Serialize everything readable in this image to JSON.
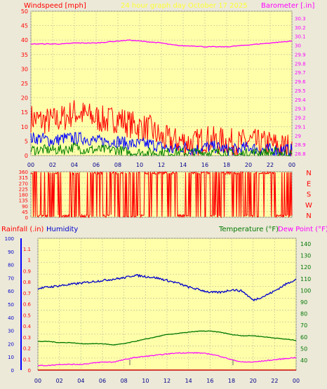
{
  "header": {
    "windspeed_label": "Windspeed [mph]",
    "title": "24 hour graph day   October 17 2025",
    "barometer_label": "Barometer [.in]"
  },
  "lower_header": {
    "rainfall_label": "Rainfall (.in)",
    "humidity_label": "Humidity",
    "temperature_label": "Temperature (°F)",
    "dewpoint_label": "Dew Point (°F)"
  },
  "colors": {
    "plot_bg": "#ffffaa",
    "frame_bg": "#ece9d8",
    "windspeed": "#ff0000",
    "gust_blue": "#0000ff",
    "avg_green": "#007f00",
    "barometer": "#ff00ff",
    "humidity": "#0000cc",
    "temperature": "#007700",
    "dewpoint": "#ff00ff",
    "rain": "#cc0000"
  },
  "chart_data": [
    {
      "type": "line",
      "name": "wind-barometer",
      "x_ticks": [
        "00",
        "02",
        "04",
        "06",
        "08",
        "10",
        "12",
        "14",
        "16",
        "18",
        "20",
        "22",
        "00"
      ],
      "x": [
        0,
        1,
        2,
        3,
        4,
        5,
        6,
        7,
        8,
        9,
        10,
        11,
        12,
        13,
        14,
        15,
        16,
        17,
        18,
        19,
        20,
        21,
        22,
        23,
        24
      ],
      "left_axis": {
        "label": "Windspeed [mph]",
        "ticks": [
          0,
          5,
          10,
          15,
          20,
          25,
          30,
          35,
          40,
          45,
          50
        ],
        "ylim": [
          0,
          50
        ]
      },
      "right_axis": {
        "label": "Barometer [.in]",
        "ticks": [
          "28.8",
          "28.9",
          "29",
          "29.1",
          "29.2",
          "29.3",
          "29.4",
          "29.5",
          "29.6",
          "29.7",
          "29.8",
          "29.9",
          "30",
          "30.1",
          "30.2",
          "30.3"
        ],
        "ylim": [
          28.8,
          30.3
        ]
      },
      "series": [
        {
          "values": [
            13,
            12,
            12,
            13,
            15,
            14,
            13,
            12,
            13,
            11,
            10,
            9,
            6,
            5,
            5,
            4,
            6,
            5,
            5,
            4,
            5,
            4,
            4,
            3,
            3
          ]
        },
        {
          "values": [
            6,
            6,
            5,
            6,
            6,
            6,
            5,
            5,
            5,
            4,
            4,
            4,
            3,
            2,
            3,
            2,
            3,
            3,
            2,
            2,
            3,
            2,
            2,
            2,
            2
          ]
        },
        {
          "values": [
            2,
            2,
            2,
            2,
            3,
            2,
            2,
            2,
            2,
            1,
            1,
            1,
            1,
            1,
            1,
            1,
            1,
            1,
            1,
            0,
            1,
            1,
            1,
            1,
            0
          ]
        },
        {
          "values": [
            29.96,
            29.96,
            29.96,
            29.96,
            29.97,
            29.97,
            29.97,
            29.98,
            29.99,
            30.0,
            29.99,
            29.98,
            29.97,
            29.95,
            29.94,
            29.94,
            29.93,
            29.93,
            29.93,
            29.94,
            29.95,
            29.96,
            29.97,
            29.98,
            29.99
          ]
        }
      ]
    },
    {
      "type": "line",
      "name": "wind-direction",
      "x_ticks": [
        "00",
        "02",
        "04",
        "06",
        "08",
        "10",
        "12",
        "14",
        "16",
        "18",
        "20",
        "22",
        "00"
      ],
      "left_axis": {
        "ticks": [
          0,
          45,
          90,
          135,
          180,
          225,
          270,
          315,
          360
        ],
        "ylim": [
          0,
          360
        ]
      },
      "right_axis": {
        "ticks": [
          "N",
          "W",
          "S",
          "E",
          "N"
        ]
      },
      "series": [
        {
          "values": [
            350,
            20,
            340,
            0,
            355,
            10,
            345,
            60,
            350,
            340,
            15,
            350,
            340,
            355,
            5,
            350,
            340,
            0,
            350,
            345,
            10,
            345,
            355,
            5,
            20
          ]
        }
      ]
    },
    {
      "type": "line",
      "name": "rain-humidity-temperature",
      "x_ticks": [
        "00",
        "02",
        "04",
        "06",
        "08",
        "10",
        "12",
        "14",
        "16",
        "18",
        "20",
        "22",
        "00"
      ],
      "x": [
        0,
        1,
        2,
        3,
        4,
        5,
        6,
        7,
        8,
        9,
        10,
        11,
        12,
        13,
        14,
        15,
        16,
        17,
        18,
        19,
        20,
        21,
        22,
        23,
        24
      ],
      "left_axis_rain": {
        "label": "Rainfall (.in)",
        "ticks": [
          "0",
          "0.1",
          "0.2",
          "0.3",
          "0.4",
          "0.5",
          "0.6",
          "0.7",
          "0.8",
          "0.9",
          "1",
          "1.1"
        ],
        "ylim": [
          0,
          1.2
        ]
      },
      "left_axis_humidity": {
        "label": "Humidity",
        "ticks": [
          0,
          10,
          20,
          30,
          40,
          50,
          60,
          70,
          80,
          90,
          100
        ],
        "ylim": [
          0,
          100
        ]
      },
      "right_axis": {
        "label": "Temperature (°F) Dew Point (°F)",
        "ticks": [
          40,
          50,
          60,
          70,
          80,
          90,
          100,
          110,
          120,
          130,
          140
        ],
        "ylim": [
          30,
          145
        ]
      },
      "series": [
        {
          "values": [
            62,
            63,
            64,
            65,
            66,
            67,
            68,
            69,
            70,
            72,
            71,
            70,
            68,
            66,
            63,
            61,
            59,
            59,
            61,
            60,
            53,
            56,
            60,
            65,
            69
          ]
        },
        {
          "values": [
            55,
            55,
            54,
            54,
            53,
            53,
            53,
            52,
            53,
            55,
            57,
            59,
            61,
            62,
            63,
            64,
            64,
            63,
            61,
            60,
            60,
            59,
            58,
            57,
            56
          ]
        },
        {
          "values": [
            34,
            34,
            35,
            35,
            35,
            36,
            37,
            37,
            39,
            41,
            42,
            43,
            44,
            45,
            45,
            45,
            44,
            42,
            39,
            37,
            37,
            38,
            39,
            40,
            41
          ]
        },
        {
          "values": [
            0,
            0,
            0,
            0,
            0,
            0,
            0,
            0,
            0,
            0,
            0,
            0,
            0,
            0,
            0,
            0,
            0,
            0,
            0,
            0,
            0,
            0,
            0,
            0,
            0
          ]
        }
      ]
    }
  ]
}
